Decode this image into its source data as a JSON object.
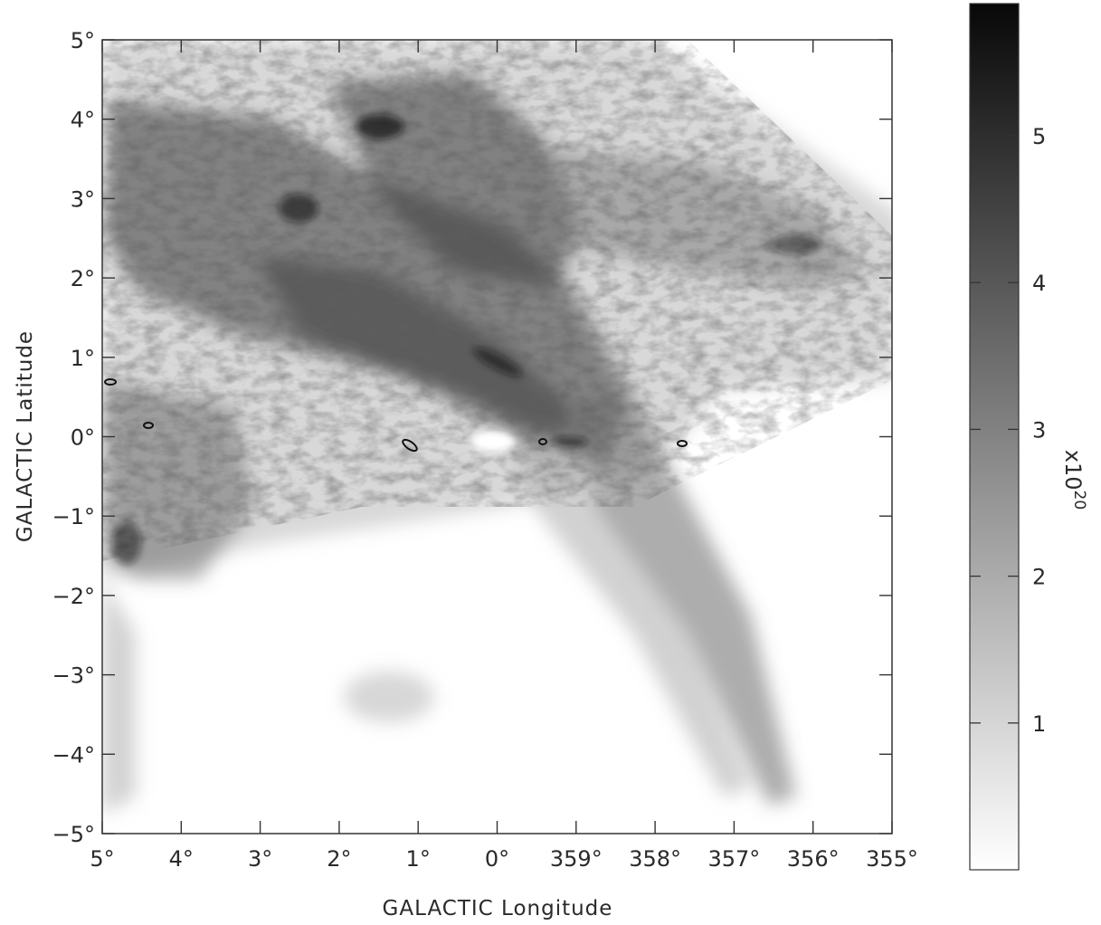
{
  "chart_data": {
    "type": "heatmap",
    "xlabel": "GALACTIC Longitude",
    "ylabel": "GALACTIC Latitude",
    "x_ticks": [
      "5°",
      "4°",
      "3°",
      "2°",
      "1°",
      "0°",
      "359°",
      "358°",
      "357°",
      "356°",
      "355°"
    ],
    "y_ticks": [
      "5°",
      "4°",
      "3°",
      "2°",
      "1°",
      "0°",
      "−1°",
      "−2°",
      "−3°",
      "−4°",
      "−5°"
    ],
    "xlim": [
      5,
      -5
    ],
    "ylim": [
      -5,
      5
    ],
    "colorbar": {
      "ticks": [
        "1",
        "2",
        "3",
        "4",
        "5"
      ],
      "tick_values": [
        1,
        2,
        3,
        4,
        5
      ],
      "range": [
        0,
        5.9
      ],
      "unit_label": "x10",
      "unit_exponent": "20",
      "colormap": "grayscale",
      "low_color": "#ffffff",
      "high_color": "#0a0a0a"
    },
    "grid": false
  }
}
